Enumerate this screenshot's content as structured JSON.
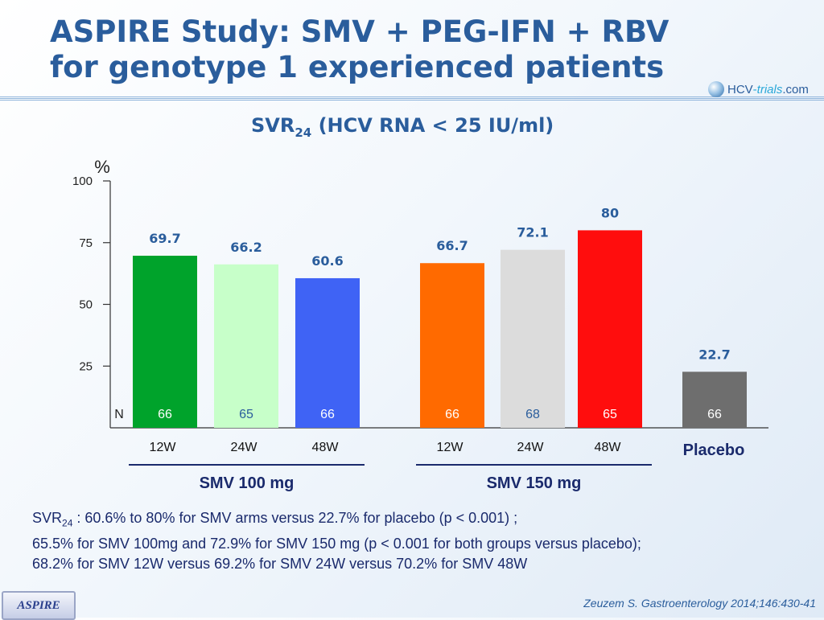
{
  "slide": {
    "title_line1": "ASPIRE Study: SMV + PEG-IFN + RBV",
    "title_line2": "for genotype 1 experienced patients",
    "logo": {
      "main": "HCV",
      "sep": "-",
      "trials": "trials",
      "domain": ".com"
    },
    "subtitle_main": "SVR",
    "subtitle_sub": "24",
    "subtitle_rest": " (HCV RNA < 25 IU/ml)",
    "footnote_line1_main": "SVR",
    "footnote_line1_sub": "24",
    "footnote_line1_rest": " : 60.6% to 80% for SMV arms versus 22.7% for placebo (p < 0.001) ;",
    "footnote_line2": "65.5% for SMV 100mg and 72.9% for SMV 150 mg (p < 0.001 for both groups versus placebo);",
    "footnote_line3": "68.2% for SMV 12W versus 69.2% for SMV 24W versus 70.2% for SMV 48W",
    "badge": "ASPIRE",
    "citation": "Zeuzem S. Gastroenterology 2014;146:430-41",
    "colors": {
      "title": "#2a5d9c",
      "value_label": "#2a5d9c",
      "group_label": "#1a2a6c"
    }
  },
  "chart_data": {
    "type": "bar",
    "title": "SVR24 (HCV RNA < 25 IU/ml)",
    "ylabel": "%",
    "ylim": [
      0,
      100
    ],
    "yticks": [
      "25",
      "50",
      "75",
      "100"
    ],
    "n_label": "N",
    "bars": [
      {
        "category": "12W",
        "group": "SMV 100 mg",
        "value": 69.7,
        "value_label": "69.7",
        "n": "66",
        "color": "#00a32b"
      },
      {
        "category": "24W",
        "group": "SMV 100 mg",
        "value": 66.2,
        "value_label": "66.2",
        "n": "65",
        "color": "#c7ffc9"
      },
      {
        "category": "48W",
        "group": "SMV 100 mg",
        "value": 60.6,
        "value_label": "60.6",
        "n": "66",
        "color": "#3f63f5"
      },
      {
        "category": "12W",
        "group": "SMV 150 mg",
        "value": 66.7,
        "value_label": "66.7",
        "n": "66",
        "color": "#ff6a00"
      },
      {
        "category": "24W",
        "group": "SMV 150 mg",
        "value": 72.1,
        "value_label": "72.1",
        "n": "68",
        "color": "#dcdcdc"
      },
      {
        "category": "48W",
        "group": "SMV 150 mg",
        "value": 80,
        "value_label": "80",
        "n": "65",
        "color": "#ff0d0d"
      },
      {
        "category": "",
        "group": "Placebo",
        "value": 22.7,
        "value_label": "22.7",
        "n": "66",
        "color": "#6e6e6e"
      }
    ],
    "groups": [
      "SMV 100 mg",
      "SMV 150 mg"
    ],
    "placebo_label": "Placebo"
  }
}
